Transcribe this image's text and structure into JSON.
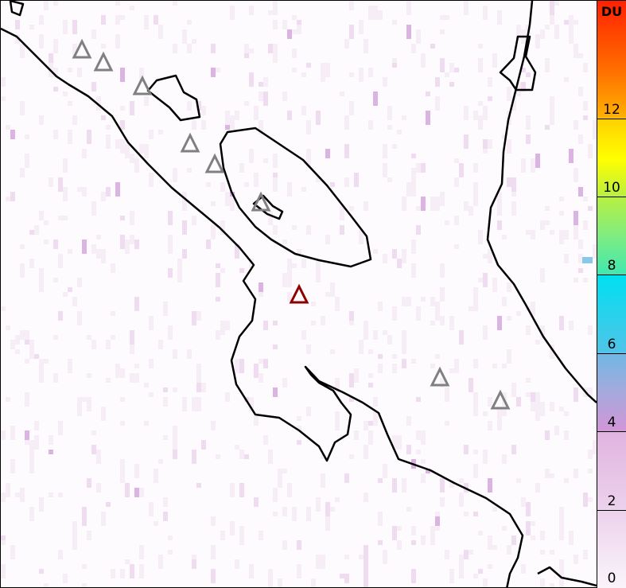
{
  "colorbar": {
    "unit": "DU",
    "ticks": [
      "0",
      "2",
      "4",
      "6",
      "8",
      "10",
      "12"
    ],
    "range": [
      0,
      15
    ]
  },
  "volcanoes": {
    "highlighted_color": "#8b0000",
    "other_color": "#808080",
    "count_other": 8
  },
  "colors": {
    "coastline": "#000000",
    "background": "#ffffff"
  }
}
